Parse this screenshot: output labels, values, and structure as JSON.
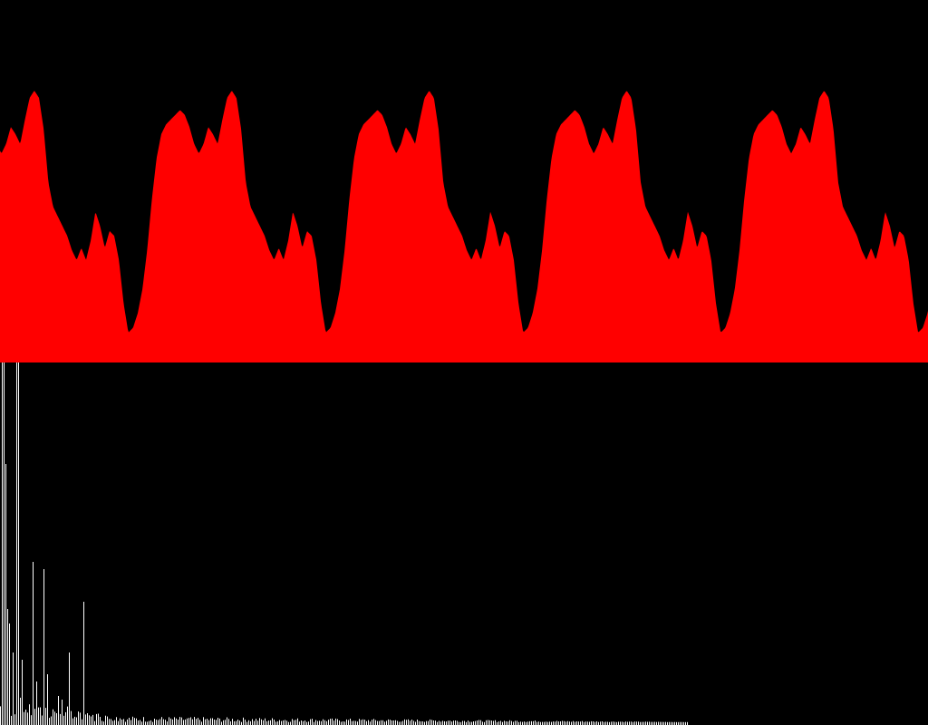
{
  "colors": {
    "background": "#000000",
    "waveform_fill": "#ff0000",
    "spectrum_bars": "#ffffff"
  },
  "visualizer": {
    "waveform": {
      "periods_visible": 4.7,
      "shape_samples": [
        0.0,
        0.02,
        0.08,
        0.18,
        0.34,
        0.55,
        0.72,
        0.82,
        0.86,
        0.88,
        0.9,
        0.92,
        0.9,
        0.85,
        0.78,
        0.74,
        0.78,
        0.85,
        0.82,
        0.78,
        0.88,
        0.97,
        1.0,
        0.97,
        0.84,
        0.62,
        0.52,
        0.48,
        0.44,
        0.4,
        0.34,
        0.3,
        0.35,
        0.3,
        0.38,
        0.5,
        0.44,
        0.35,
        0.42,
        0.4,
        0.3,
        0.12
      ]
    },
    "spectrum": {
      "bar_count": 512,
      "peak_bins": [
        {
          "bin": 1,
          "level": 1.0
        },
        {
          "bin": 2,
          "level": 1.0
        },
        {
          "bin": 3,
          "level": 0.72
        },
        {
          "bin": 4,
          "level": 0.32
        },
        {
          "bin": 5,
          "level": 0.28
        },
        {
          "bin": 7,
          "level": 0.2
        },
        {
          "bin": 9,
          "level": 1.0
        },
        {
          "bin": 10,
          "level": 1.0
        },
        {
          "bin": 12,
          "level": 0.18
        },
        {
          "bin": 18,
          "level": 0.45
        },
        {
          "bin": 20,
          "level": 0.12
        },
        {
          "bin": 24,
          "level": 0.43
        },
        {
          "bin": 26,
          "level": 0.14
        },
        {
          "bin": 32,
          "level": 0.08
        },
        {
          "bin": 34,
          "level": 0.07
        },
        {
          "bin": 38,
          "level": 0.2
        },
        {
          "bin": 46,
          "level": 0.34
        }
      ],
      "noise_floor": 0.008
    }
  }
}
